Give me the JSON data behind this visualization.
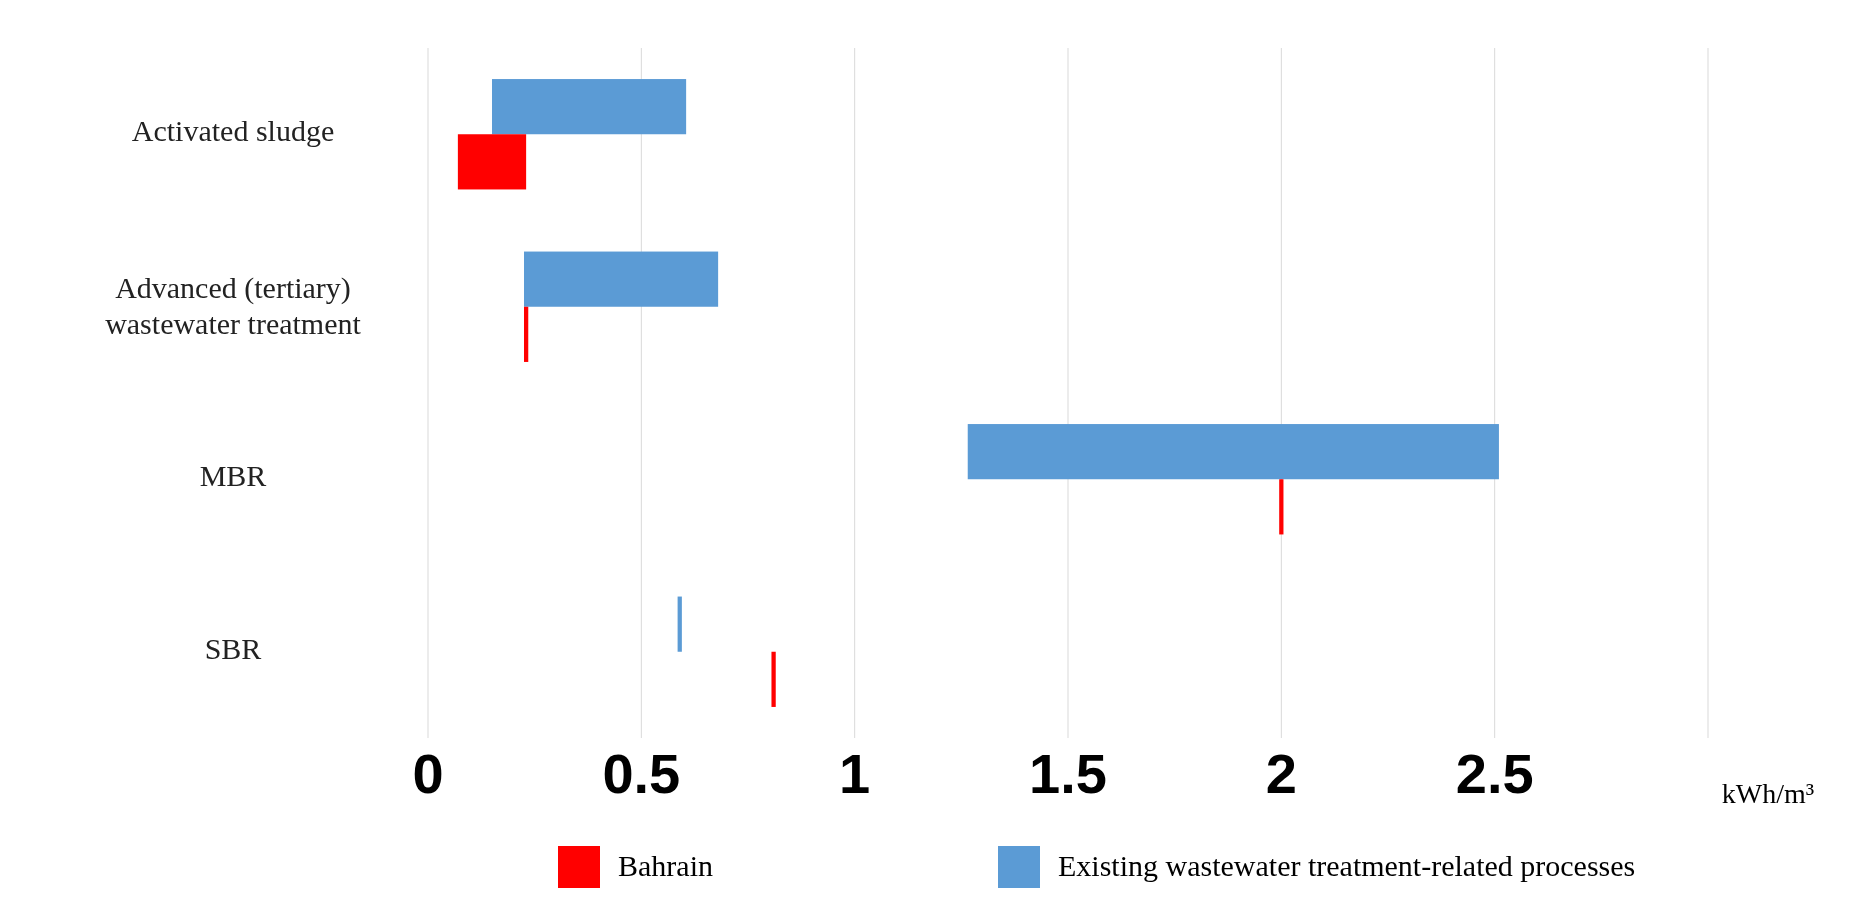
{
  "chart_data": {
    "type": "bar",
    "orientation": "horizontal",
    "categories": [
      "Activated sludge",
      "Advanced (tertiary) wastewater treatment",
      "MBR",
      "SBR"
    ],
    "series": [
      {
        "name": "Existing wastewater treatment-related processes",
        "color": "#5b9bd5",
        "base": [
          0.15,
          0.225,
          1.265,
          0.585
        ],
        "values": [
          0.455,
          0.455,
          1.245,
          0.01
        ]
      },
      {
        "name": "Bahrain",
        "color": "#ff0000",
        "base": [
          0.07,
          0.225,
          1.995,
          0.805
        ],
        "values": [
          0.16,
          0.01,
          0.01,
          0.01
        ]
      }
    ],
    "xlim": [
      0,
      3
    ],
    "xticks": [
      0,
      0.5,
      1,
      1.5,
      2,
      2.5,
      {
        "value": 3,
        "label": null
      }
    ],
    "xlabel": "kWh/m³",
    "grid": "x",
    "legend": "bottom"
  }
}
